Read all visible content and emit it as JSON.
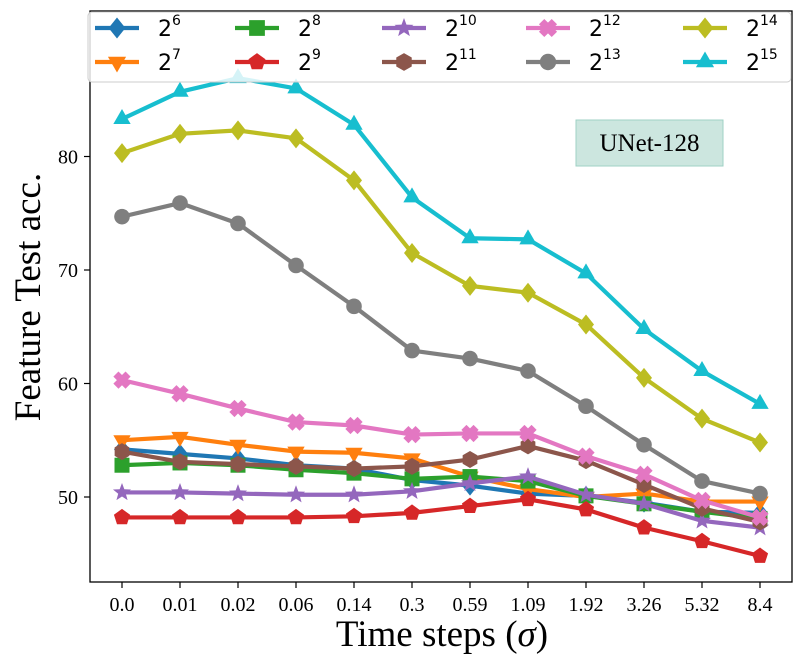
{
  "chart_data": {
    "type": "line",
    "xlabel_main": "Time steps (",
    "xlabel_symbol": "σ",
    "xlabel_end": ")",
    "ylabel": "Feature Test acc.",
    "categories": [
      "0.0",
      "0.01",
      "0.02",
      "0.06",
      "0.14",
      "0.3",
      "0.59",
      "1.09",
      "1.92",
      "3.26",
      "5.32",
      "8.4"
    ],
    "yticks": [
      "50",
      "60",
      "70",
      "80"
    ],
    "ylim": [
      44,
      88
    ],
    "grid": false,
    "legend_position": "top",
    "annotation": "UNet-128",
    "annotation_bg": "#cce6df",
    "series": [
      {
        "base": "2",
        "exp": "6",
        "color": "#1f77b4",
        "marker": "diamond",
        "values": [
          54.2,
          53.8,
          53.4,
          52.8,
          52.5,
          51.5,
          51.0,
          50.3,
          50.1,
          49.5,
          48.7,
          48.6
        ]
      },
      {
        "base": "2",
        "exp": "7",
        "color": "#ff7f0e",
        "marker": "triangle-down",
        "values": [
          55.0,
          55.3,
          54.6,
          54.0,
          53.9,
          53.4,
          51.8,
          50.7,
          50.0,
          50.3,
          49.6,
          49.6
        ]
      },
      {
        "base": "2",
        "exp": "8",
        "color": "#2ca02c",
        "marker": "square",
        "values": [
          52.8,
          53.0,
          52.8,
          52.4,
          52.1,
          51.6,
          51.8,
          51.4,
          50.1,
          49.4,
          48.7,
          48.1
        ]
      },
      {
        "base": "2",
        "exp": "9",
        "color": "#d62728",
        "marker": "pentagon",
        "values": [
          48.2,
          48.2,
          48.2,
          48.2,
          48.3,
          48.6,
          49.2,
          49.8,
          48.9,
          47.3,
          46.1,
          44.8
        ]
      },
      {
        "base": "2",
        "exp": "10",
        "color": "#9467bd",
        "marker": "star",
        "values": [
          50.4,
          50.4,
          50.3,
          50.2,
          50.2,
          50.5,
          51.2,
          51.8,
          50.2,
          49.4,
          47.9,
          47.3
        ]
      },
      {
        "base": "2",
        "exp": "11",
        "color": "#8c564b",
        "marker": "hexagon",
        "values": [
          54.0,
          53.1,
          52.9,
          52.7,
          52.5,
          52.7,
          53.3,
          54.5,
          53.2,
          51.1,
          49.0,
          47.8
        ]
      },
      {
        "base": "2",
        "exp": "12",
        "color": "#e377c2",
        "marker": "plus",
        "values": [
          60.3,
          59.1,
          57.8,
          56.6,
          56.3,
          55.5,
          55.6,
          55.6,
          53.6,
          52.0,
          49.7,
          48.2
        ]
      },
      {
        "base": "2",
        "exp": "13",
        "color": "#7f7f7f",
        "marker": "circle",
        "values": [
          74.7,
          75.9,
          74.1,
          70.4,
          66.8,
          62.9,
          62.2,
          61.1,
          58.0,
          54.6,
          51.4,
          50.3
        ]
      },
      {
        "base": "2",
        "exp": "14",
        "color": "#bcbd22",
        "marker": "diamond",
        "values": [
          80.3,
          82.0,
          82.3,
          81.6,
          77.9,
          71.5,
          68.6,
          68.0,
          65.2,
          60.5,
          56.9,
          54.8
        ]
      },
      {
        "base": "2",
        "exp": "15",
        "color": "#17becf",
        "marker": "triangle-up",
        "values": [
          83.3,
          85.7,
          86.9,
          86.0,
          82.8,
          76.4,
          72.8,
          72.7,
          69.7,
          64.8,
          61.1,
          58.2
        ]
      }
    ]
  }
}
